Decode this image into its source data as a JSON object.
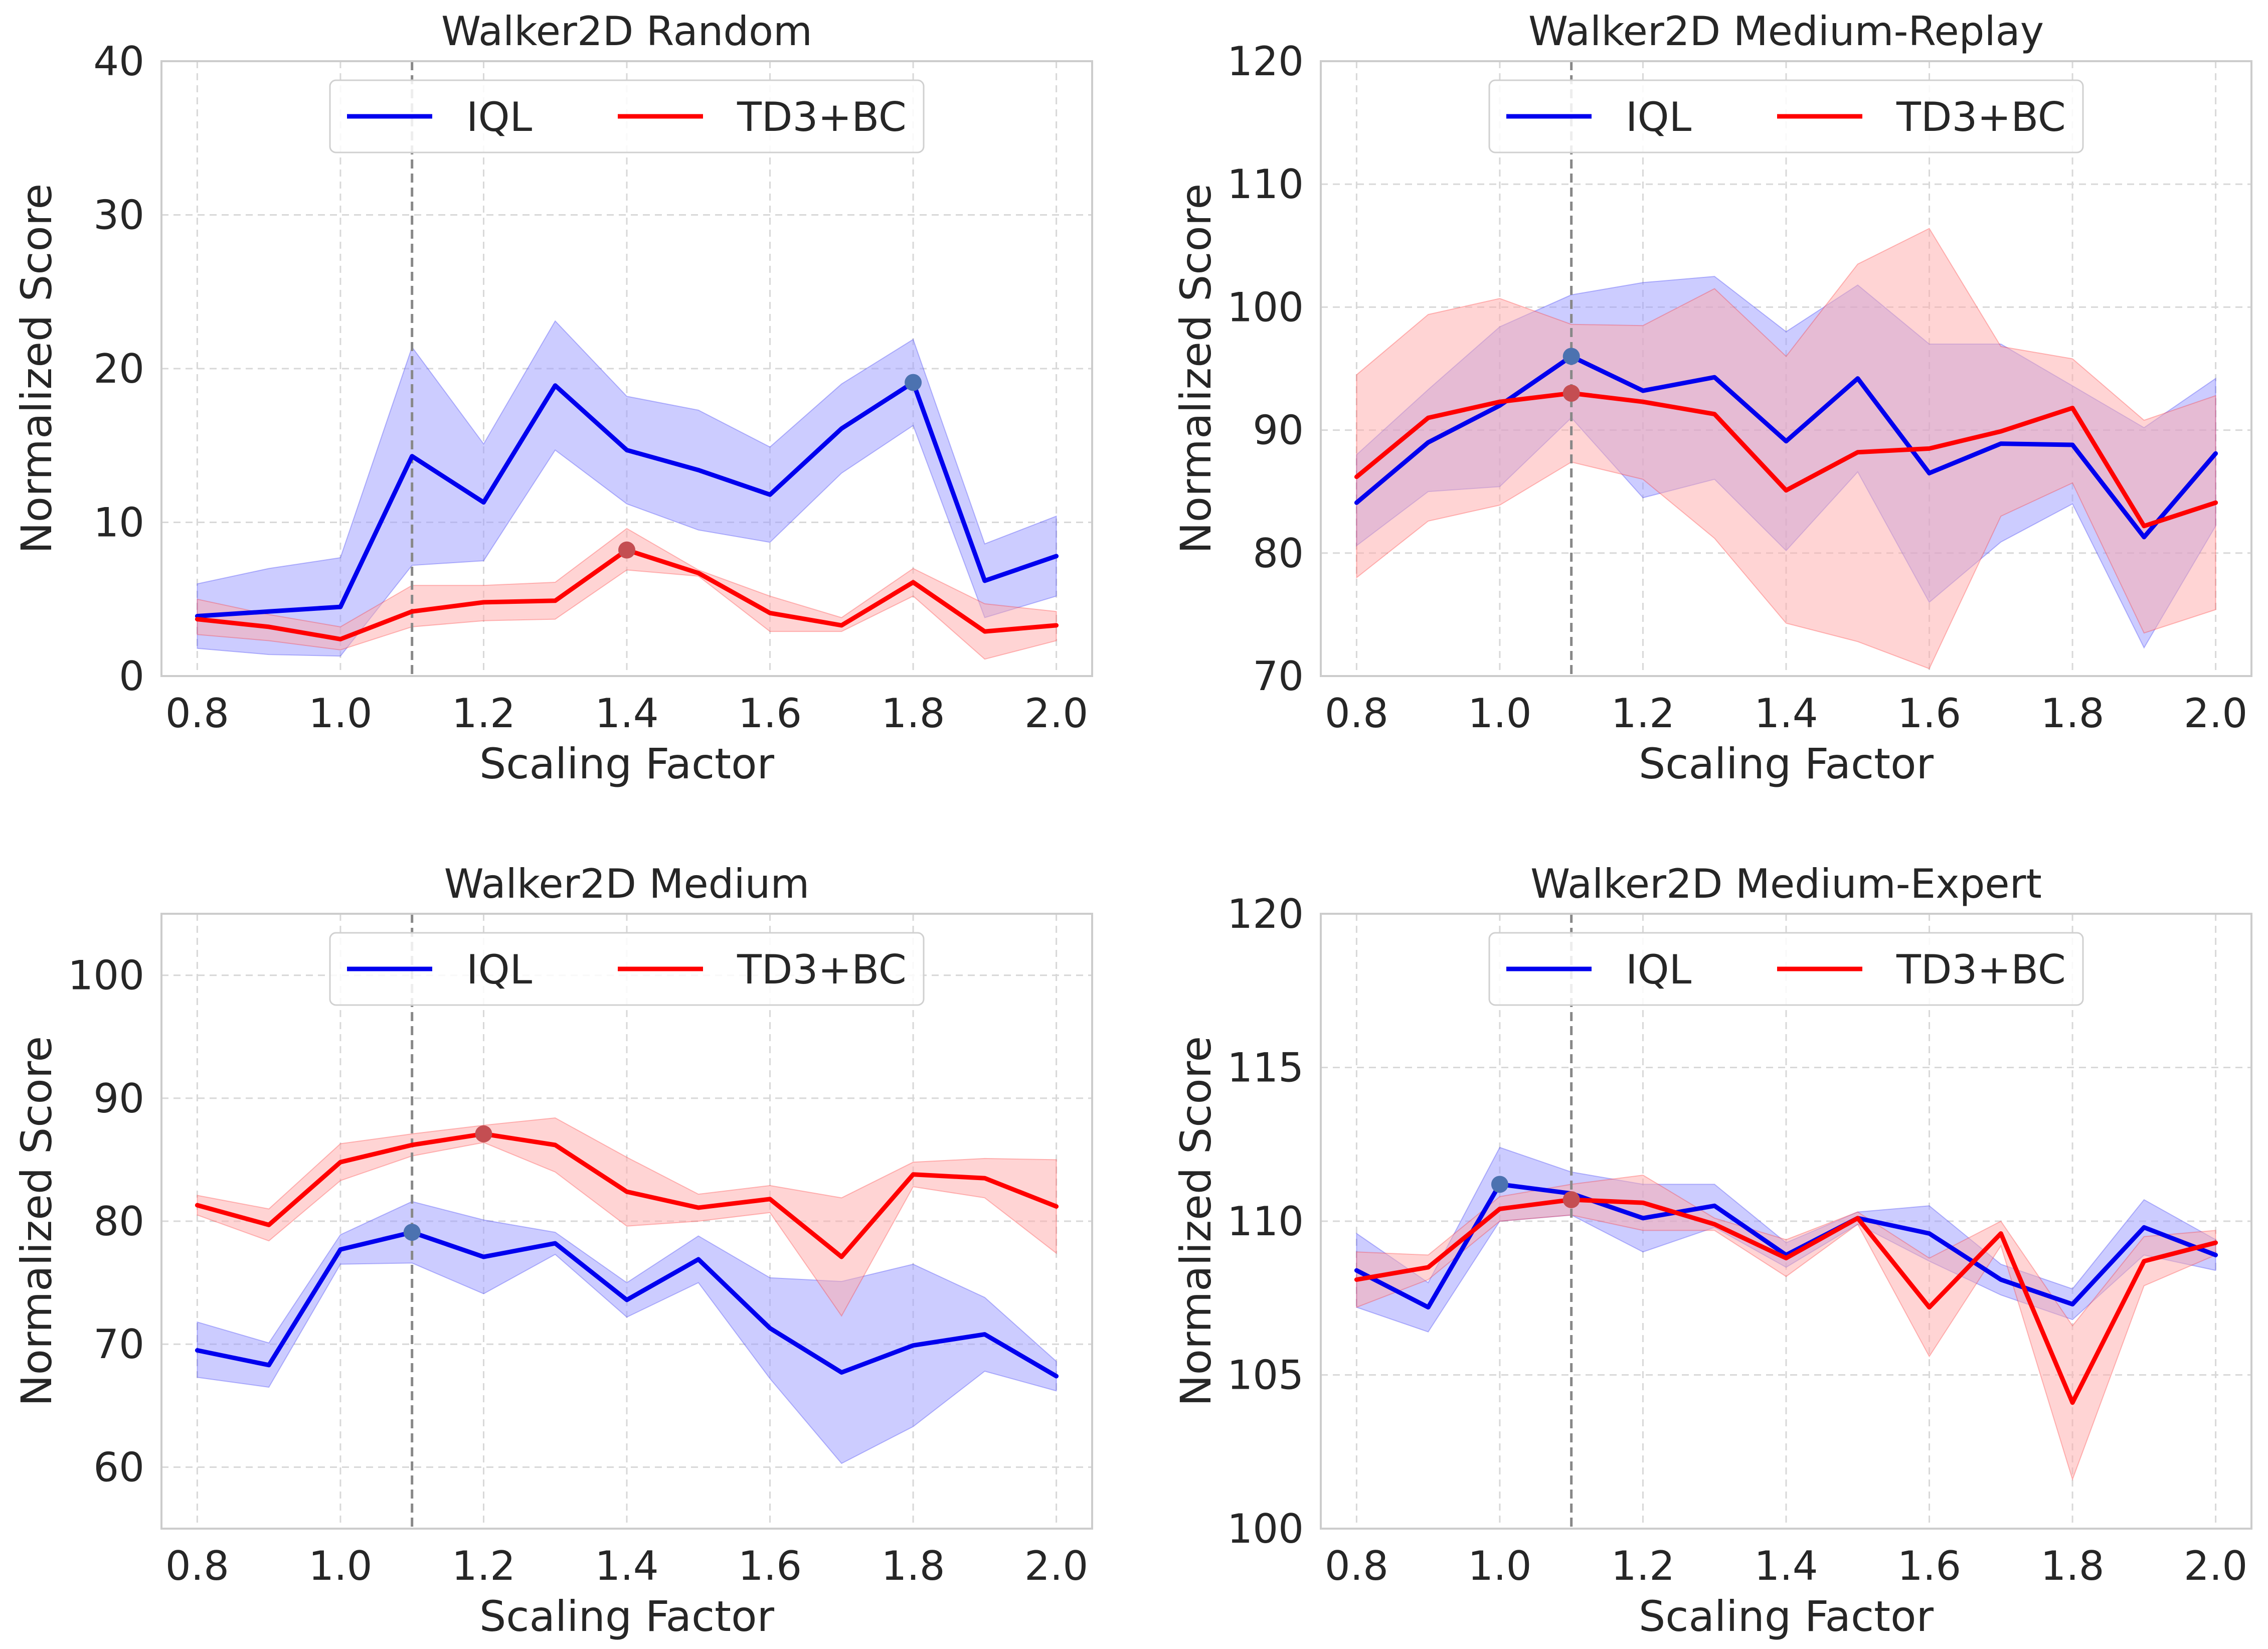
{
  "chart_data": [
    {
      "type": "line",
      "title": "Walker2D Random",
      "xlabel": "Scaling Factor",
      "ylabel": "Normalized Score",
      "xlim": [
        0.75,
        2.05
      ],
      "ylim": [
        0,
        40
      ],
      "xticks": [
        0.8,
        1.0,
        1.2,
        1.4,
        1.6,
        1.8,
        2.0
      ],
      "yticks": [
        0,
        10,
        20,
        30,
        40
      ],
      "grid": true,
      "legend": "top-center",
      "reference_x": 1.1,
      "x": [
        0.8,
        0.9,
        1.0,
        1.1,
        1.2,
        1.3,
        1.4,
        1.5,
        1.6,
        1.7,
        1.8,
        1.9,
        2.0
      ],
      "series": [
        {
          "name": "IQL",
          "color": "#0000ee",
          "fill": "#9999ff",
          "values": [
            3.9,
            4.2,
            4.5,
            14.3,
            11.3,
            18.9,
            14.7,
            13.4,
            11.8,
            16.1,
            19.1,
            6.2,
            7.8
          ],
          "lower": [
            1.8,
            1.4,
            1.3,
            7.2,
            7.5,
            14.7,
            11.2,
            9.5,
            8.7,
            13.2,
            16.3,
            3.8,
            5.2
          ],
          "upper": [
            6.0,
            7.0,
            7.7,
            21.4,
            15.1,
            23.1,
            18.2,
            17.3,
            14.9,
            19.0,
            21.9,
            8.6,
            10.4
          ],
          "marker": {
            "x": 1.8,
            "y": 19.1,
            "color": "#4c72b0"
          }
        },
        {
          "name": "TD3+BC",
          "color": "#ff0000",
          "fill": "#ffaaaa",
          "values": [
            3.7,
            3.2,
            2.4,
            4.2,
            4.8,
            4.9,
            8.2,
            6.7,
            4.1,
            3.3,
            6.1,
            2.9,
            3.3
          ],
          "lower": [
            2.7,
            2.3,
            1.7,
            3.2,
            3.6,
            3.7,
            6.9,
            6.5,
            2.9,
            2.9,
            5.2,
            1.1,
            2.3
          ],
          "upper": [
            5.0,
            4.0,
            3.2,
            5.9,
            5.9,
            6.1,
            9.6,
            6.9,
            5.2,
            3.8,
            7.0,
            4.7,
            4.2
          ],
          "marker": {
            "x": 1.4,
            "y": 8.2,
            "color": "#c44e52"
          }
        }
      ]
    },
    {
      "type": "line",
      "title": "Walker2D Medium-Replay",
      "xlabel": "Scaling Factor",
      "ylabel": "Normalized Score",
      "xlim": [
        0.75,
        2.05
      ],
      "ylim": [
        70,
        120
      ],
      "xticks": [
        0.8,
        1.0,
        1.2,
        1.4,
        1.6,
        1.8,
        2.0
      ],
      "yticks": [
        70,
        80,
        90,
        100,
        110,
        120
      ],
      "grid": true,
      "legend": "top-center",
      "reference_x": 1.1,
      "x": [
        0.8,
        0.9,
        1.0,
        1.1,
        1.2,
        1.3,
        1.4,
        1.5,
        1.6,
        1.7,
        1.8,
        1.9,
        2.0
      ],
      "series": [
        {
          "name": "IQL",
          "color": "#0000ee",
          "fill": "#9999ff",
          "values": [
            84.1,
            89.0,
            92.0,
            96.0,
            93.2,
            94.3,
            89.1,
            94.2,
            86.5,
            88.9,
            88.8,
            81.3,
            88.1
          ],
          "lower": [
            80.6,
            85.0,
            85.4,
            91.0,
            84.5,
            86.0,
            80.2,
            86.6,
            76.0,
            80.9,
            84.0,
            72.3,
            82.2
          ],
          "upper": [
            88.0,
            93.3,
            98.4,
            101.0,
            102.0,
            102.5,
            98.0,
            101.8,
            97.0,
            97.0,
            93.6,
            90.2,
            94.2
          ],
          "marker": {
            "x": 1.1,
            "y": 96.0,
            "color": "#4c72b0"
          }
        },
        {
          "name": "TD3+BC",
          "color": "#ff0000",
          "fill": "#ffaaaa",
          "values": [
            86.2,
            91.0,
            92.3,
            93.0,
            92.3,
            91.3,
            85.1,
            88.2,
            88.5,
            89.9,
            91.8,
            82.2,
            84.1
          ],
          "lower": [
            78.0,
            82.6,
            83.9,
            87.4,
            86.0,
            81.2,
            74.3,
            72.8,
            70.6,
            83.0,
            85.7,
            73.5,
            75.4
          ],
          "upper": [
            94.5,
            99.4,
            100.7,
            98.6,
            98.5,
            101.5,
            96.0,
            103.5,
            106.4,
            96.8,
            95.8,
            90.8,
            92.8
          ],
          "marker": {
            "x": 1.1,
            "y": 93.0,
            "color": "#c44e52"
          }
        }
      ]
    },
    {
      "type": "line",
      "title": "Walker2D Medium",
      "xlabel": "Scaling Factor",
      "ylabel": "Normalized Score",
      "xlim": [
        0.75,
        2.05
      ],
      "ylim": [
        55,
        105
      ],
      "xticks": [
        0.8,
        1.0,
        1.2,
        1.4,
        1.6,
        1.8,
        2.0
      ],
      "yticks": [
        60,
        70,
        80,
        90,
        100
      ],
      "grid": true,
      "legend": "top-center",
      "reference_x": 1.1,
      "x": [
        0.8,
        0.9,
        1.0,
        1.1,
        1.2,
        1.3,
        1.4,
        1.5,
        1.6,
        1.7,
        1.8,
        1.9,
        2.0
      ],
      "series": [
        {
          "name": "IQL",
          "color": "#0000ee",
          "fill": "#9999ff",
          "values": [
            69.5,
            68.3,
            77.7,
            79.1,
            77.1,
            78.2,
            73.6,
            76.9,
            71.3,
            67.7,
            69.9,
            70.8,
            67.4
          ],
          "lower": [
            67.3,
            66.5,
            76.5,
            76.6,
            74.1,
            77.3,
            72.2,
            75.0,
            67.2,
            60.3,
            63.3,
            67.8,
            66.2
          ],
          "upper": [
            71.8,
            70.1,
            78.9,
            81.6,
            80.1,
            79.1,
            75.0,
            78.8,
            75.4,
            75.1,
            76.5,
            73.8,
            68.6
          ],
          "marker": {
            "x": 1.1,
            "y": 79.1,
            "color": "#4c72b0"
          }
        },
        {
          "name": "TD3+BC",
          "color": "#ff0000",
          "fill": "#ffaaaa",
          "values": [
            81.3,
            79.7,
            84.8,
            86.2,
            87.1,
            86.2,
            82.4,
            81.1,
            81.8,
            77.1,
            83.8,
            83.5,
            81.2
          ],
          "lower": [
            80.5,
            78.4,
            83.3,
            85.3,
            86.4,
            84.0,
            79.6,
            80.0,
            80.7,
            72.3,
            82.8,
            81.9,
            77.4
          ],
          "upper": [
            82.1,
            81.0,
            86.3,
            87.1,
            87.8,
            88.4,
            85.2,
            82.2,
            82.9,
            81.9,
            84.8,
            85.1,
            85.0
          ],
          "marker": {
            "x": 1.2,
            "y": 87.1,
            "color": "#c44e52"
          }
        }
      ]
    },
    {
      "type": "line",
      "title": "Walker2D Medium-Expert",
      "xlabel": "Scaling Factor",
      "ylabel": "Normalized Score",
      "xlim": [
        0.75,
        2.05
      ],
      "ylim": [
        100,
        120
      ],
      "xticks": [
        0.8,
        1.0,
        1.2,
        1.4,
        1.6,
        1.8,
        2.0
      ],
      "yticks": [
        100,
        105,
        110,
        115,
        120
      ],
      "grid": true,
      "legend": "top-center",
      "reference_x": 1.1,
      "x": [
        0.8,
        0.9,
        1.0,
        1.1,
        1.2,
        1.3,
        1.4,
        1.5,
        1.6,
        1.7,
        1.8,
        1.9,
        2.0
      ],
      "series": [
        {
          "name": "IQL",
          "color": "#0000ee",
          "fill": "#9999ff",
          "values": [
            108.4,
            107.2,
            111.2,
            110.9,
            110.1,
            110.5,
            108.9,
            110.1,
            109.6,
            108.1,
            107.3,
            109.8,
            108.9
          ],
          "lower": [
            107.2,
            106.4,
            110.0,
            110.2,
            109.0,
            109.8,
            108.5,
            109.9,
            108.7,
            107.6,
            106.8,
            108.9,
            108.4
          ],
          "upper": [
            109.6,
            108.0,
            112.4,
            111.6,
            111.2,
            111.2,
            109.3,
            110.3,
            110.5,
            108.6,
            107.8,
            110.7,
            109.4
          ],
          "marker": {
            "x": 1.0,
            "y": 111.2,
            "color": "#4c72b0"
          }
        },
        {
          "name": "TD3+BC",
          "color": "#ff0000",
          "fill": "#ffaaaa",
          "values": [
            108.1,
            108.5,
            110.4,
            110.7,
            110.6,
            109.9,
            108.8,
            110.1,
            107.2,
            109.6,
            104.1,
            108.7,
            109.3
          ],
          "lower": [
            107.2,
            108.1,
            110.0,
            110.2,
            109.7,
            109.7,
            108.2,
            109.9,
            105.6,
            109.2,
            101.6,
            107.9,
            108.9
          ],
          "upper": [
            109.0,
            108.9,
            110.8,
            111.2,
            111.5,
            110.1,
            109.4,
            110.3,
            108.8,
            110.0,
            106.6,
            109.5,
            109.7
          ],
          "marker": {
            "x": 1.1,
            "y": 110.7,
            "color": "#c44e52"
          }
        }
      ]
    }
  ]
}
